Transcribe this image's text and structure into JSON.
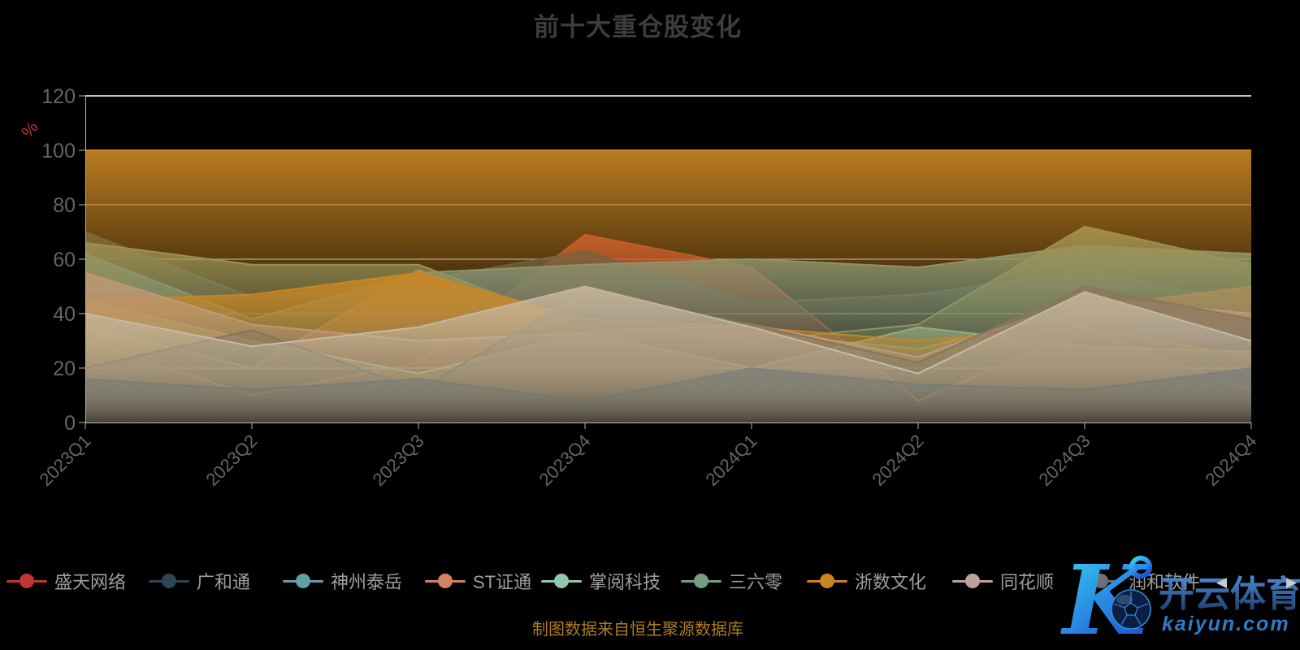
{
  "title": "前十大重仓股变化",
  "caption": "制图数据来自恒生聚源数据库",
  "colors": {
    "background": "#000000",
    "grid_line": "#e0e0e0",
    "axis_line": "#b5b5b5",
    "axis_label": "#646464",
    "legend_label": "#9e9e9e",
    "title": "#3d3d3d",
    "caption": "#ad7d1f",
    "ylabel": "#c23531"
  },
  "chart_data": {
    "type": "area",
    "title": "前十大重仓股变化",
    "xlabel": "",
    "ylabel": "%",
    "ylim": [
      0,
      120
    ],
    "yticks": [
      0,
      20,
      40,
      60,
      80,
      100,
      120
    ],
    "grid": true,
    "legend_position": "bottom",
    "stacked": false,
    "categories": [
      "2023Q1",
      "2023Q2",
      "2023Q3",
      "2023Q4",
      "2024Q1",
      "2024Q2",
      "2024Q3",
      "2024Q4"
    ],
    "series": [
      {
        "name": "盛天网络",
        "color": "#c23531",
        "values": [
          30,
          10,
          22,
          69,
          57,
          8,
          34,
          12
        ]
      },
      {
        "name": "广和通",
        "color": "#2f4554",
        "values": [
          70,
          46,
          52,
          63,
          44,
          47,
          56,
          44
        ]
      },
      {
        "name": "神州泰岳",
        "color": "#61a0a8",
        "values": [
          62,
          38,
          55,
          58,
          60,
          57,
          65,
          62
        ]
      },
      {
        "name": "ST证通",
        "color": "#d48265",
        "values": [
          35,
          20,
          56,
          35,
          33,
          27,
          42,
          50
        ]
      },
      {
        "name": "掌阅科技",
        "color": "#91c7ae",
        "values": [
          45,
          30,
          18,
          33,
          20,
          35,
          28,
          26
        ]
      },
      {
        "name": "三六零",
        "color": "#749f83",
        "values": [
          66,
          58,
          58,
          35,
          30,
          36,
          72,
          58
        ]
      },
      {
        "name": "浙数文化",
        "color": "#ca8622",
        "values": [
          45,
          47,
          55,
          38,
          35,
          30,
          35,
          24
        ]
      },
      {
        "name": "同花顺",
        "color": "#bda29a",
        "values": [
          55,
          36,
          30,
          33,
          36,
          24,
          46,
          40
        ]
      },
      {
        "name": "润和软件",
        "color": "#6e7074",
        "values": [
          20,
          34,
          12,
          48,
          36,
          22,
          50,
          38
        ]
      },
      {
        "name": "",
        "color": "#546570",
        "values": [
          16,
          12,
          16,
          8,
          20,
          14,
          12,
          20
        ]
      },
      {
        "name": "",
        "color": "#c4ccd3",
        "values": [
          40,
          28,
          35,
          50,
          35,
          18,
          48,
          30
        ]
      },
      {
        "name": "",
        "color": "#ca8622",
        "values": [
          100,
          100,
          100,
          100,
          100,
          100,
          100,
          100
        ]
      }
    ]
  },
  "legend": {
    "visible_count": 9,
    "prev_icon": "◀",
    "next_icon": "▶"
  },
  "watermark": {
    "logo_letter": "K",
    "brand": "开云体育",
    "domain": "kaiyun.com",
    "brand_color_top": "#4e8bd8",
    "brand_color_bottom": "#1b3a66",
    "logo_color_top": "#38d6f6",
    "logo_color_bottom": "#1f55d6",
    "domain_color": "#2e7cc9"
  }
}
